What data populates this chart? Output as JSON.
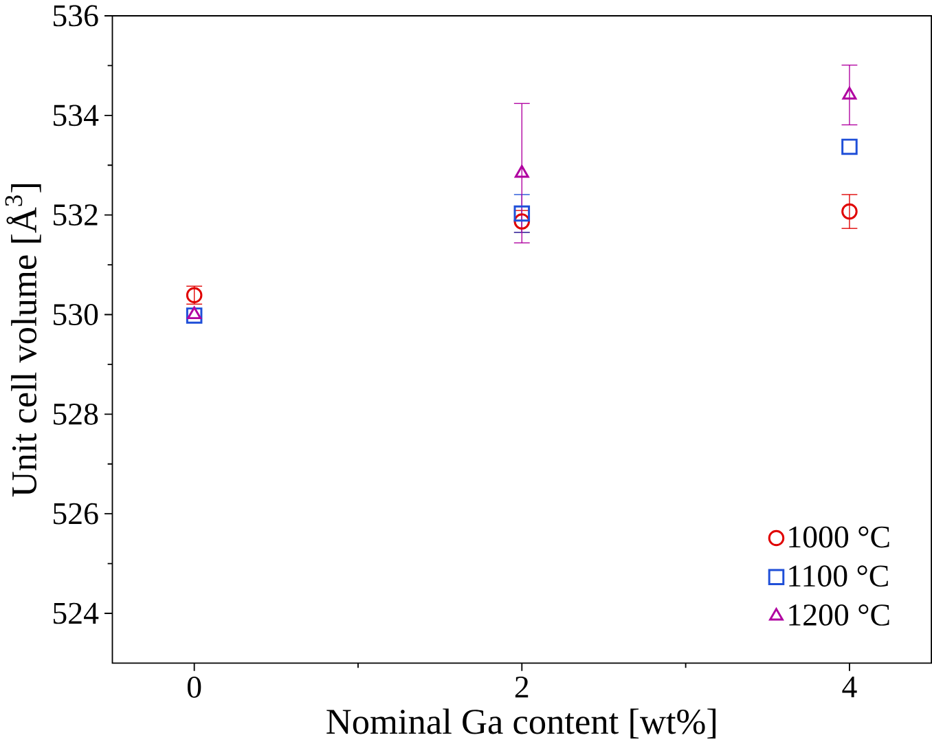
{
  "chart_data": {
    "type": "scatter",
    "xlabel": "Nominal Ga content [wt%]",
    "ylabel": "Unit cell volume [Å$^{3}$]",
    "x": [
      0,
      2,
      4
    ],
    "xlim": [
      -0.5,
      4.5
    ],
    "xticks": [
      0,
      2,
      4
    ],
    "ylim": [
      523,
      536
    ],
    "yticks": [
      524,
      526,
      528,
      530,
      532,
      534,
      536
    ],
    "grid": false,
    "legend": "bottom right",
    "series": [
      {
        "name": "1000 °C",
        "color": "#e00000",
        "marker": "circle",
        "values": [
          530.39,
          531.87,
          532.07
        ],
        "errors": [
          0.18,
          0.22,
          0.34
        ]
      },
      {
        "name": "1100 °C",
        "color": "#1f4fd8",
        "marker": "square",
        "values": [
          529.98,
          532.03,
          533.37
        ],
        "errors": [
          null,
          0.38,
          null
        ]
      },
      {
        "name": "1200 °C",
        "color": "#b000a0",
        "marker": "triangle",
        "values": [
          530.0,
          532.84,
          534.41
        ],
        "errors": [
          null,
          1.4,
          0.6
        ]
      }
    ]
  }
}
